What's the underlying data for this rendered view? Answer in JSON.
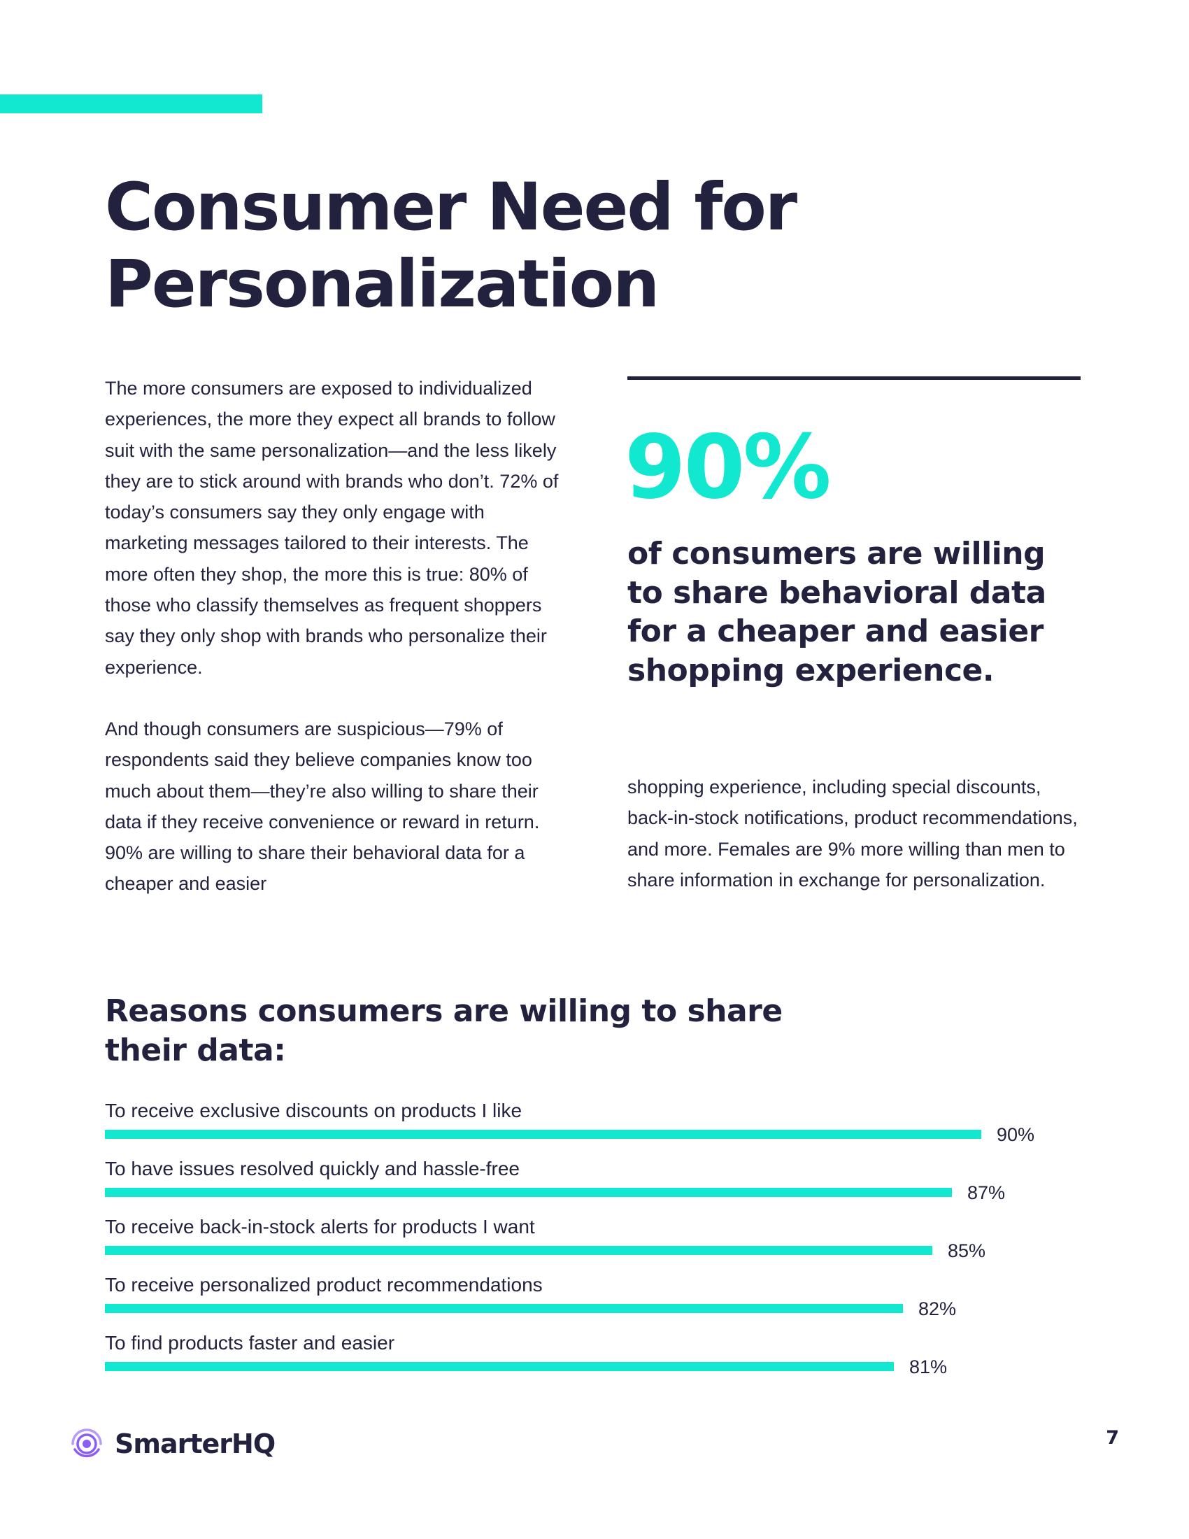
{
  "page": {
    "title": "Consumer Need for Personalization",
    "page_number": "7"
  },
  "body": {
    "left_paragraph_1": "The more consumers are exposed to individualized experiences, the more they expect all brands to follow suit with the same personalization—and the less likely they are to stick around with brands who don’t. 72% of today’s consumers say they only engage with marketing messages tailored to their interests. The more often they shop, the more this is true: 80% of those who classify themselves as frequent shoppers say they only shop with brands who personalize their experience.",
    "left_paragraph_2": "And though consumers are suspicious—79% of respondents said they believe companies know too much about them—they’re also willing to share their data if they receive convenience or reward in return. 90% are willing to share their behavioral data for a cheaper and easier",
    "right_paragraph": "shopping experience, including special discounts, back-in-stock notifications, product recommendations, and more. Females are 9% more willing than men to share information in exchange for personalization."
  },
  "callout": {
    "value": "90%",
    "caption": "of consumers are willing to share behavioral data for a cheaper and easier shopping experience."
  },
  "chart_data": {
    "type": "bar",
    "orientation": "horizontal",
    "title": "Reasons consumers are willing to share their data:",
    "categories": [
      "To receive exclusive discounts on products I like",
      "To have issues resolved quickly and hassle-free",
      "To receive back-in-stock alerts for products I want",
      "To receive personalized product recommendations",
      "To find products faster and easier"
    ],
    "values": [
      90,
      87,
      85,
      82,
      81
    ],
    "value_labels": [
      "90%",
      "87%",
      "85%",
      "82%",
      "81%"
    ],
    "xlim": [
      0,
      100
    ],
    "color": "#12e8d0"
  },
  "footer": {
    "brand": "SmarterHQ",
    "logo_icon": "smarterhq-logo-icon"
  },
  "colors": {
    "accent": "#12e8d0",
    "text": "#22223f",
    "logo": "#8b5cf6"
  }
}
